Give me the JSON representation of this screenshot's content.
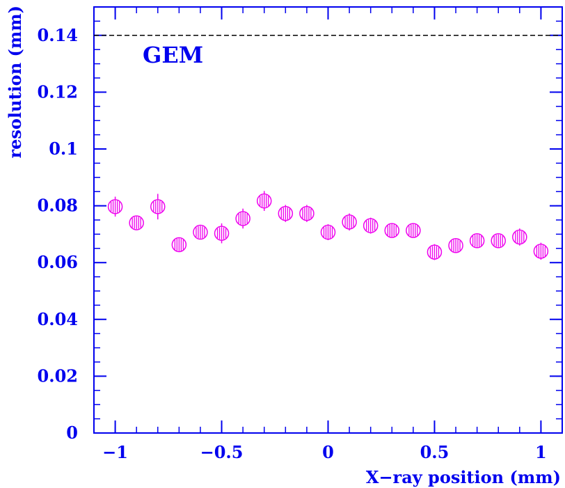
{
  "chart_data": {
    "type": "scatter",
    "title": "",
    "xlabel": "X−ray position (mm)",
    "ylabel": "resolution (mm)",
    "xlim": [
      -1.1,
      1.1
    ],
    "ylim": [
      0,
      0.15
    ],
    "x_ticks": [
      -1,
      -0.5,
      0,
      0.5,
      1
    ],
    "x_tick_labels": [
      "−1",
      "−0.5",
      "0",
      "0.5",
      "1"
    ],
    "y_ticks": [
      0,
      0.02,
      0.04,
      0.06,
      0.08,
      0.1,
      0.12,
      0.14
    ],
    "y_tick_labels": [
      "0",
      "0.02",
      "0.04",
      "0.06",
      "0.08",
      "0.1",
      "0.12",
      "0.14"
    ],
    "grid": false,
    "reference_line": {
      "y": 0.14,
      "style": "dashed",
      "color": "#000000"
    },
    "annotation": "GEM",
    "colors": {
      "axes": "#0000ee",
      "text": "#0000ee",
      "markers": "#ee00ee"
    },
    "series": [
      {
        "x": [
          -1.0,
          -0.9,
          -0.8,
          -0.7,
          -0.6,
          -0.5,
          -0.4,
          -0.3,
          -0.2,
          -0.1,
          0.0,
          0.1,
          0.2,
          0.3,
          0.4,
          0.5,
          0.6,
          0.7,
          0.8,
          0.9,
          1.0
        ],
        "y": [
          0.0797,
          0.074,
          0.0797,
          0.0663,
          0.0707,
          0.0703,
          0.0755,
          0.0817,
          0.0773,
          0.0773,
          0.0707,
          0.0743,
          0.073,
          0.0713,
          0.0713,
          0.0637,
          0.066,
          0.0677,
          0.0677,
          0.069,
          0.064
        ],
        "yerr": [
          0.0035,
          0.0025,
          0.0045,
          0.0025,
          0.0025,
          0.0035,
          0.0035,
          0.0035,
          0.003,
          0.003,
          0.0028,
          0.003,
          0.0028,
          0.0025,
          0.0025,
          0.0028,
          0.0025,
          0.0025,
          0.0025,
          0.003,
          0.003
        ]
      }
    ]
  }
}
